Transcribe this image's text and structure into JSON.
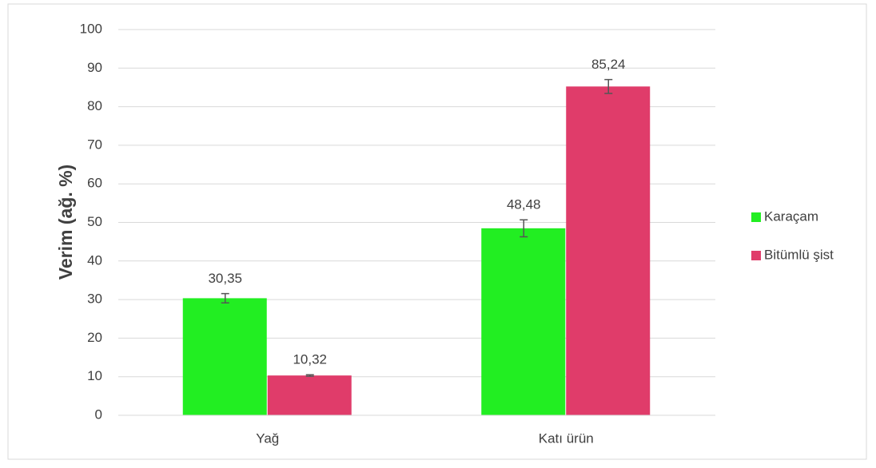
{
  "chart_data": {
    "type": "bar",
    "categories": [
      "Yağ",
      "Katı ürün"
    ],
    "series": [
      {
        "name": "Karaçam",
        "color": "#22ee22",
        "values": [
          30.35,
          48.48
        ],
        "value_labels": [
          "30,35",
          "48,48"
        ],
        "errors": [
          1.2,
          2.2
        ]
      },
      {
        "name": "Bitümlü şist",
        "color": "#e03c6a",
        "values": [
          10.32,
          85.24
        ],
        "value_labels": [
          "10,32",
          "85,24"
        ],
        "errors": [
          0.2,
          1.8
        ]
      }
    ],
    "y_label": "Verim (ağ. %)",
    "ylim": [
      0,
      100
    ],
    "yticks": [
      0,
      10,
      20,
      30,
      40,
      50,
      60,
      70,
      80,
      90,
      100
    ],
    "grid": true,
    "legend": "right"
  }
}
